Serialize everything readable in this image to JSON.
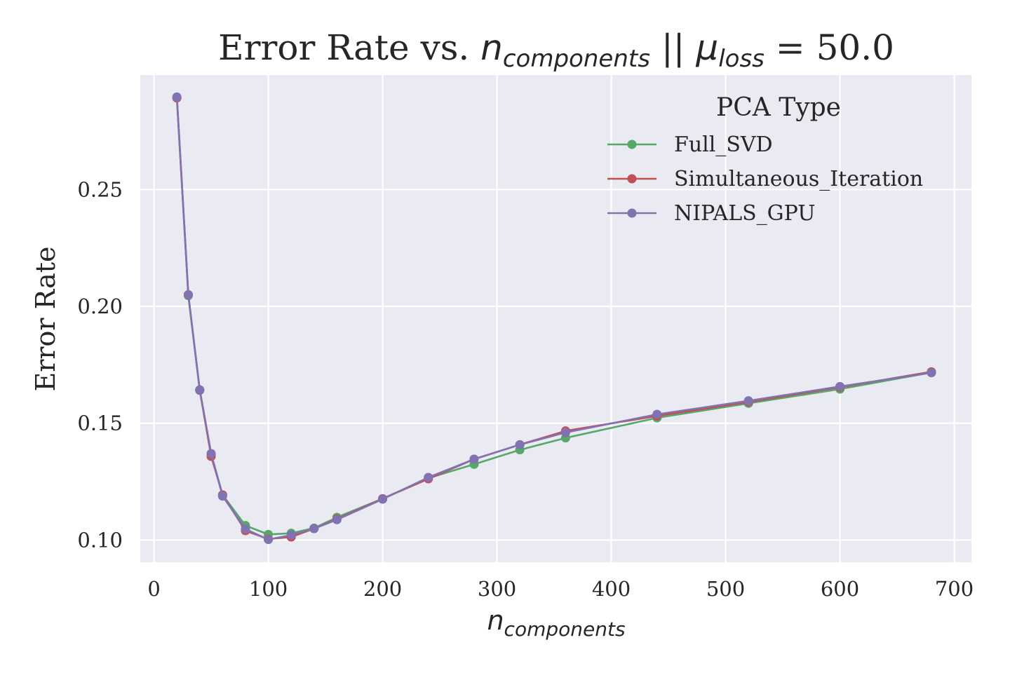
{
  "chart_data": {
    "type": "line",
    "title": {
      "prefix": "Error Rate vs. ",
      "n_sym": "n",
      "n_sub": "components",
      "sep": " || ",
      "mu_sym": "μ",
      "mu_sub": "loss",
      "suffix": " = 50.0"
    },
    "xlabel": {
      "sym": "n",
      "sub": "components"
    },
    "ylabel": "Error Rate",
    "xlim": [
      -12,
      715
    ],
    "ylim": [
      0.0905,
      0.299
    ],
    "xticks": [
      0,
      100,
      200,
      300,
      400,
      500,
      600,
      700
    ],
    "xtick_labels": [
      "0",
      "100",
      "200",
      "300",
      "400",
      "500",
      "600",
      "700"
    ],
    "yticks": [
      0.1,
      0.15,
      0.2,
      0.25
    ],
    "ytick_labels": [
      "0.10",
      "0.15",
      "0.20",
      "0.25"
    ],
    "grid": true,
    "legend": {
      "title": "PCA Type",
      "position": "upper-right"
    },
    "x": [
      20,
      30,
      40,
      50,
      60,
      80,
      100,
      120,
      140,
      160,
      200,
      240,
      280,
      320,
      360,
      440,
      520,
      600,
      680
    ],
    "series": [
      {
        "name": "Full_SVD",
        "color": "#55a868",
        "values": [
          0.2892,
          0.2046,
          0.1641,
          0.1368,
          0.1193,
          0.1062,
          0.1024,
          0.1029,
          0.1051,
          0.1097,
          0.1177,
          0.1265,
          0.1324,
          0.1386,
          0.1437,
          0.1523,
          0.1585,
          0.1646,
          0.1717
        ]
      },
      {
        "name": "Simultaneous_Iteration",
        "color": "#c44e52",
        "values": [
          0.2892,
          0.205,
          0.1641,
          0.1358,
          0.1193,
          0.104,
          0.1004,
          0.1013,
          0.1049,
          0.109,
          0.1177,
          0.1262,
          0.1346,
          0.1408,
          0.1467,
          0.1531,
          0.1591,
          0.1654,
          0.172
        ]
      },
      {
        "name": "NIPALS_GPU",
        "color": "#8172b2",
        "values": [
          0.2896,
          0.205,
          0.1643,
          0.137,
          0.1188,
          0.1047,
          0.1002,
          0.1021,
          0.1049,
          0.1087,
          0.1175,
          0.1268,
          0.1346,
          0.1408,
          0.146,
          0.1538,
          0.1596,
          0.1657,
          0.1716
        ]
      }
    ]
  }
}
